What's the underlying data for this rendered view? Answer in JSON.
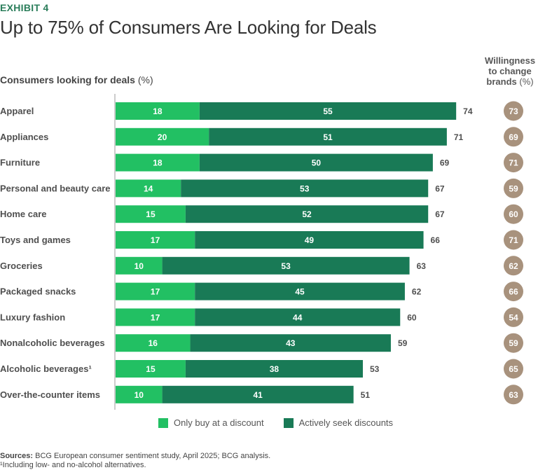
{
  "header": {
    "exhibit": "EXHIBIT 4",
    "title": "Up to 75% of Consumers Are Looking for Deals"
  },
  "chart_data": {
    "type": "bar",
    "orientation": "horizontal",
    "stacked": true,
    "title": "Consumers looking for deals",
    "title_unit": "(%)",
    "side_title": "Willingness to change brands",
    "side_title_unit": "(%)",
    "categories": [
      "Apparel",
      "Appliances",
      "Furniture",
      "Personal and beauty care",
      "Home care",
      "Toys and games",
      "Groceries",
      "Packaged snacks",
      "Luxury fashion",
      "Nonalcoholic beverages",
      "Alcoholic beverages¹",
      "Over-the-counter items"
    ],
    "series": [
      {
        "name": "Only buy at a discount",
        "color": "#22c063",
        "values": [
          18,
          20,
          18,
          14,
          15,
          17,
          10,
          17,
          17,
          16,
          15,
          10
        ]
      },
      {
        "name": "Actively seek discounts",
        "color": "#197a56",
        "values": [
          55,
          51,
          50,
          53,
          52,
          49,
          53,
          45,
          44,
          43,
          38,
          41
        ]
      }
    ],
    "totals": [
      74,
      71,
      69,
      67,
      67,
      66,
      63,
      62,
      60,
      59,
      53,
      51
    ],
    "willingness_to_change_brands": [
      73,
      69,
      71,
      59,
      60,
      71,
      62,
      66,
      54,
      59,
      65,
      63
    ],
    "willingness_color": "#a8927d",
    "xlim": [
      0,
      80
    ],
    "grid": false,
    "legend_position": "bottom"
  },
  "legend": {
    "items": [
      {
        "label": "Only buy at a discount",
        "color": "#22c063"
      },
      {
        "label": "Actively seek discounts",
        "color": "#197a56"
      }
    ]
  },
  "footer": {
    "sources_label": "Sources:",
    "sources_text": " BCG European consumer sentiment study, April 2025; BCG analysis.",
    "footnote": "¹Including low- and no-alcohol alternatives."
  }
}
